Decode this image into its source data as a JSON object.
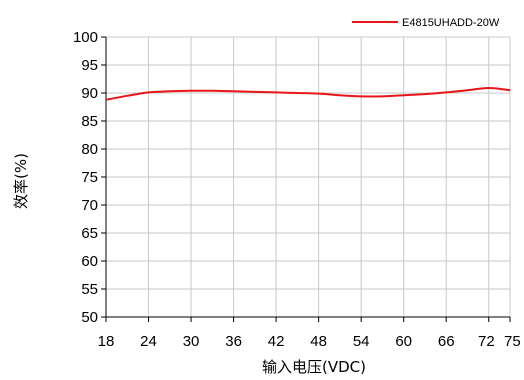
{
  "chart_data": {
    "type": "line",
    "xlabel": "输入电压(VDC)",
    "ylabel": "效率(%)",
    "xlim": [
      18,
      75
    ],
    "ylim": [
      50,
      100
    ],
    "x_ticks": [
      18,
      24,
      30,
      36,
      42,
      48,
      54,
      60,
      66,
      72,
      75
    ],
    "y_ticks": [
      50,
      55,
      60,
      65,
      70,
      75,
      80,
      85,
      90,
      95,
      100
    ],
    "grid": true,
    "legend_position": "top-right",
    "series": [
      {
        "name": "E4815UHADD-20W",
        "color": "#e8151b",
        "x": [
          18,
          21,
          24,
          27,
          30,
          33,
          36,
          39,
          42,
          45,
          48,
          51,
          54,
          57,
          60,
          63,
          66,
          69,
          72,
          75
        ],
        "y": [
          88.8,
          89.5,
          90.1,
          90.3,
          90.4,
          90.4,
          90.3,
          90.2,
          90.1,
          90.0,
          89.9,
          89.6,
          89.4,
          89.4,
          89.6,
          89.8,
          90.1,
          90.5,
          90.9,
          90.5
        ]
      }
    ]
  }
}
